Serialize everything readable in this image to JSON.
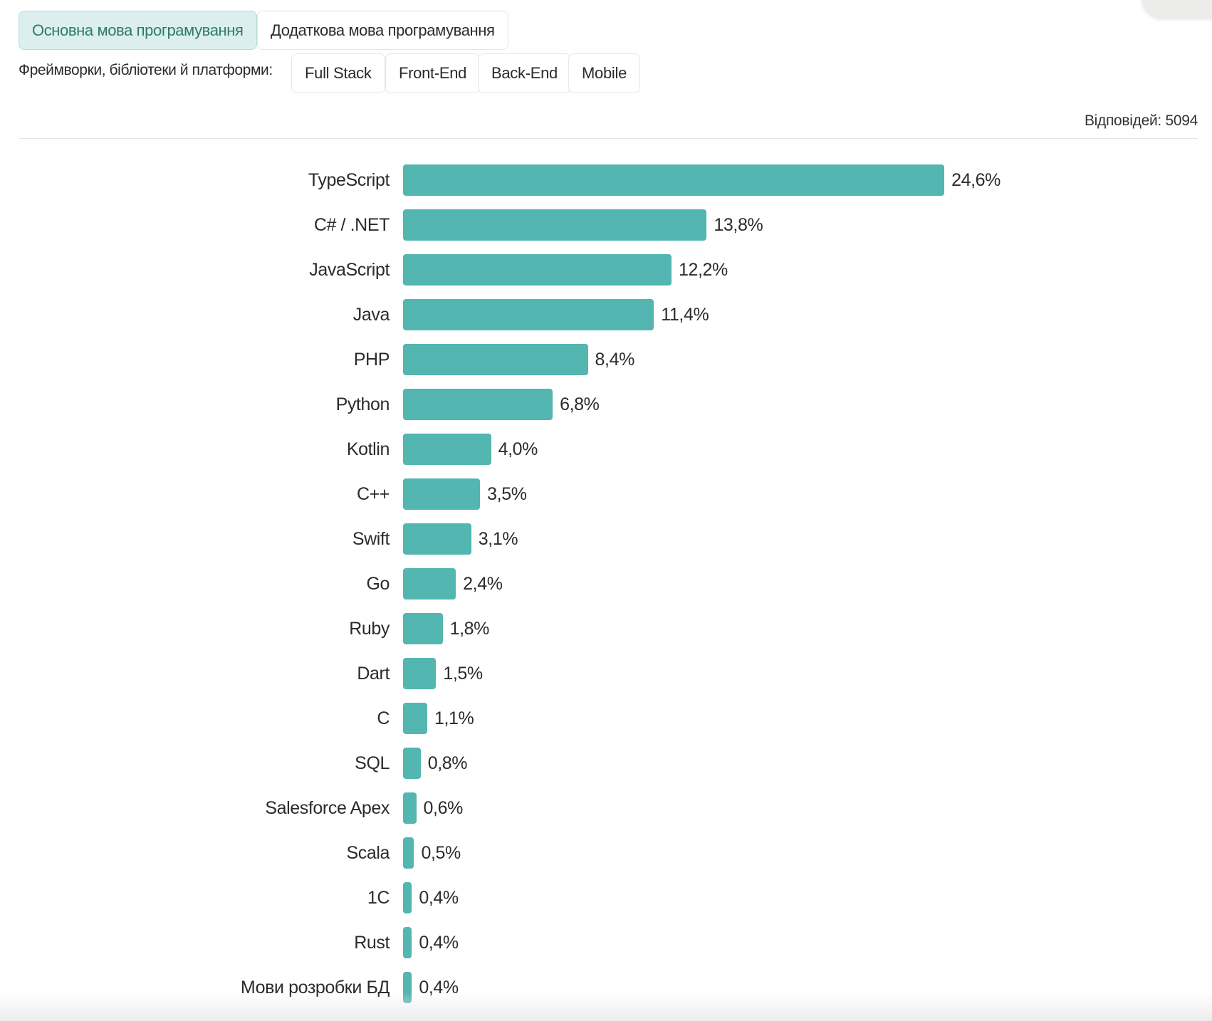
{
  "tabs": [
    {
      "label": "Основна мова програмування",
      "active": true
    },
    {
      "label": "Додаткова мова програмування",
      "active": false
    }
  ],
  "frameworks": {
    "label": "Фреймворки, бібліотеки й платформи:",
    "buttons": [
      "Full Stack",
      "Front-End",
      "Back-End",
      "Mobile"
    ]
  },
  "responses": "Відповідей: 5094",
  "colors": {
    "bar": "#53b6b0",
    "accent": "#2e7a70"
  },
  "chart_data": {
    "type": "bar",
    "orientation": "horizontal",
    "categories": [
      "TypeScript",
      "C# / .NET",
      "JavaScript",
      "Java",
      "PHP",
      "Python",
      "Kotlin",
      "C++",
      "Swift",
      "Go",
      "Ruby",
      "Dart",
      "C",
      "SQL",
      "Salesforce Apex",
      "Scala",
      "1C",
      "Rust",
      "Мови розробки БД"
    ],
    "values": [
      24.6,
      13.8,
      12.2,
      11.4,
      8.4,
      6.8,
      4.0,
      3.5,
      3.1,
      2.4,
      1.8,
      1.5,
      1.1,
      0.8,
      0.6,
      0.5,
      0.4,
      0.4,
      0.4
    ],
    "labels": [
      "24,6%",
      "13,8%",
      "12,2%",
      "11,4%",
      "8,4%",
      "6,8%",
      "4,0%",
      "3,5%",
      "3,1%",
      "2,4%",
      "1,8%",
      "1,5%",
      "1,1%",
      "0,8%",
      "0,6%",
      "0,5%",
      "0,4%",
      "0,4%",
      "0,4%"
    ],
    "unit": "%"
  }
}
